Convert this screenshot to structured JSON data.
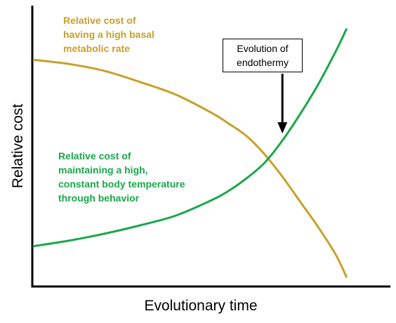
{
  "chart_data": {
    "type": "line",
    "title": "",
    "xlabel": "Evolutionary time",
    "ylabel": "Relative cost",
    "xlim": [
      0,
      100
    ],
    "ylim": [
      0,
      100
    ],
    "grid": false,
    "legend": "none",
    "series": [
      {
        "name": "Relative cost of\nhaving a high basal\nmetabolic rate",
        "color": "#c8a02a",
        "x": [
          0,
          10,
          20,
          30,
          40,
          50,
          55,
          60,
          65,
          70,
          75,
          80,
          85,
          88
        ],
        "y": [
          81,
          79.5,
          77,
          73,
          68.5,
          62,
          58,
          53.5,
          47,
          39,
          30,
          21,
          11,
          3
        ]
      },
      {
        "name": "Relative cost of\nmaintaining a high,\nconstant body temperature\nthrough behavior",
        "color": "#1aa84a",
        "x": [
          0,
          10,
          20,
          30,
          40,
          50,
          55,
          60,
          65,
          70,
          75,
          80,
          85,
          88
        ],
        "y": [
          14,
          16,
          18.5,
          21.5,
          25,
          30.5,
          34,
          38.5,
          44,
          52,
          61.5,
          72,
          84,
          92
        ]
      }
    ],
    "annotations": [
      {
        "text": "Evolution of\nendothermy",
        "x": 70,
        "y": 52
      }
    ]
  }
}
